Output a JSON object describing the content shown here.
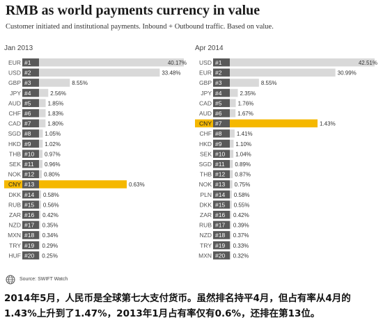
{
  "header": {
    "title": "RMB as world payments  currency in value",
    "subtitle": "Customer initiated  and institutional  payments. Inbound + Outbound traffic.  Based on value."
  },
  "colors": {
    "bar": "#d9d9d9",
    "rank_box": "#595959",
    "highlight": "#f5b800",
    "label": "#555555"
  },
  "chart_data": [
    {
      "type": "bar",
      "title": "Jan 2013",
      "categories": [
        "EUR",
        "USD",
        "GBP",
        "JPY",
        "AUD",
        "CHF",
        "CAD",
        "SGD",
        "HKD",
        "THB",
        "SEK",
        "NOK",
        "CNY",
        "DKK",
        "RUB",
        "ZAR",
        "NZD",
        "MXN",
        "TRY",
        "HUF"
      ],
      "ranks": [
        "#1",
        "#2",
        "#3",
        "#4",
        "#5",
        "#6",
        "#7",
        "#8",
        "#9",
        "#10",
        "#11",
        "#12",
        "#13",
        "#14",
        "#15",
        "#16",
        "#17",
        "#18",
        "#19",
        "#20"
      ],
      "values": [
        40.17,
        33.48,
        8.55,
        2.56,
        1.85,
        1.83,
        1.8,
        1.05,
        1.02,
        0.97,
        0.96,
        0.8,
        0.63,
        0.58,
        0.56,
        0.42,
        0.35,
        0.34,
        0.29,
        0.25
      ],
      "value_labels": [
        "40.17%",
        "33.48%",
        "8.55%",
        "2.56%",
        "1.85%",
        "1.83%",
        "1.80%",
        "1.05%",
        "1.02%",
        "0.97%",
        "0.96%",
        "0.80%",
        "0.63%",
        "0.58%",
        "0.56%",
        "0.42%",
        "0.35%",
        "0.34%",
        "0.29%",
        "0.25%"
      ],
      "highlight": "CNY"
    },
    {
      "type": "bar",
      "title": "Apr 2014",
      "categories": [
        "USD",
        "EUR",
        "GBP",
        "JPY",
        "CAD",
        "AUD",
        "CNY",
        "CHF",
        "HKD",
        "SEK",
        "SGD",
        "THB",
        "NOK",
        "PLN",
        "DKK",
        "ZAR",
        "RUB",
        "NZD",
        "TRY",
        "MXN"
      ],
      "ranks": [
        "#1",
        "#2",
        "#3",
        "#4",
        "#5",
        "#6",
        "#7",
        "#8",
        "#9",
        "#10",
        "#11",
        "#12",
        "#13",
        "#14",
        "#15",
        "#16",
        "#17",
        "#18",
        "#19",
        "#20"
      ],
      "values": [
        42.51,
        30.99,
        8.55,
        2.35,
        1.76,
        1.67,
        1.43,
        1.41,
        1.1,
        1.04,
        0.89,
        0.87,
        0.75,
        0.58,
        0.55,
        0.42,
        0.39,
        0.37,
        0.33,
        0.32
      ],
      "value_labels": [
        "42.51%",
        "30.99%",
        "8.55%",
        "2.35%",
        "1.76%",
        "1.67%",
        "1.43%",
        "1.41%",
        "1.10%",
        "1.04%",
        "0.89%",
        "0.87%",
        "0.75%",
        "0.58%",
        "0.55%",
        "0.42%",
        "0.39%",
        "0.37%",
        "0.33%",
        "0.32%"
      ],
      "highlight": "CNY"
    }
  ],
  "footer": {
    "source": "Source: SWIFT Watch",
    "logo_icon": "swift-globe-icon",
    "caption": "2014年5月，人民币是全球第七大支付货币。虽然排名持平4月，但占有率从4月的1.43%上升到了1.47%，2013年1月占有率仅有0.6%，还排在第13位。"
  }
}
